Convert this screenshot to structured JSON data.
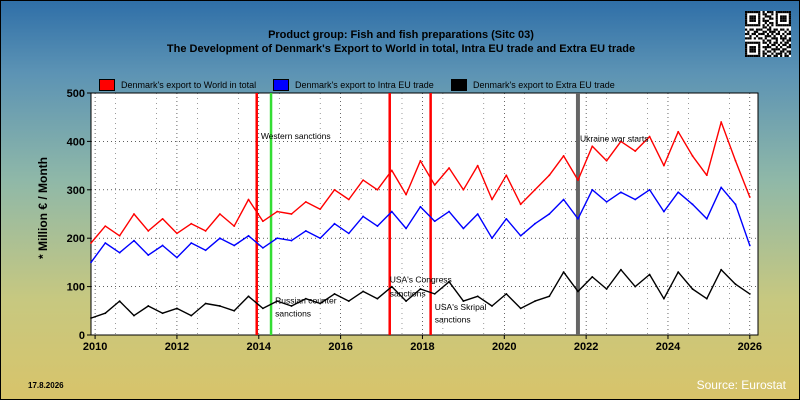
{
  "chart_data": {
    "type": "line",
    "title": "Product group: Fish and fish preparations (Sitc 03)",
    "subtitle": "The Development of Denmark's Export to World in total, Intra EU trade and Extra EU trade",
    "ylabel": "* Million € / Month",
    "xlim": [
      2009.9,
      2026.2
    ],
    "ylim": [
      0,
      500
    ],
    "xticks": [
      2010,
      2012,
      2014,
      2016,
      2018,
      2020,
      2022,
      2024,
      2026
    ],
    "yticks": [
      0,
      100,
      200,
      300,
      400,
      500
    ],
    "grid": true,
    "legend_position": "top",
    "series": [
      {
        "name": "Denmark's export to World in total",
        "color": "#ff0000",
        "x": [
          2009.9,
          2010.25,
          2010.6,
          2010.95,
          2011.3,
          2011.65,
          2012.0,
          2012.35,
          2012.7,
          2013.05,
          2013.4,
          2013.75,
          2014.1,
          2014.45,
          2014.8,
          2015.15,
          2015.5,
          2015.85,
          2016.2,
          2016.55,
          2016.9,
          2017.25,
          2017.6,
          2017.95,
          2018.3,
          2018.65,
          2019.0,
          2019.35,
          2019.7,
          2020.05,
          2020.4,
          2020.75,
          2021.1,
          2021.45,
          2021.8,
          2022.15,
          2022.5,
          2022.85,
          2023.2,
          2023.55,
          2023.9,
          2024.25,
          2024.6,
          2024.95,
          2025.3,
          2025.65,
          2026.0
        ],
        "values": [
          190,
          225,
          205,
          250,
          215,
          240,
          210,
          230,
          215,
          250,
          225,
          280,
          235,
          255,
          250,
          275,
          260,
          300,
          280,
          320,
          300,
          340,
          290,
          360,
          310,
          345,
          300,
          350,
          280,
          330,
          270,
          300,
          330,
          370,
          320,
          390,
          360,
          400,
          380,
          410,
          350,
          420,
          370,
          330,
          440,
          360,
          285
        ]
      },
      {
        "name": "Denmark's export to Intra EU trade",
        "color": "#0000ff",
        "x": [
          2009.9,
          2010.25,
          2010.6,
          2010.95,
          2011.3,
          2011.65,
          2012.0,
          2012.35,
          2012.7,
          2013.05,
          2013.4,
          2013.75,
          2014.1,
          2014.45,
          2014.8,
          2015.15,
          2015.5,
          2015.85,
          2016.2,
          2016.55,
          2016.9,
          2017.25,
          2017.6,
          2017.95,
          2018.3,
          2018.65,
          2019.0,
          2019.35,
          2019.7,
          2020.05,
          2020.4,
          2020.75,
          2021.1,
          2021.45,
          2021.8,
          2022.15,
          2022.5,
          2022.85,
          2023.2,
          2023.55,
          2023.9,
          2024.25,
          2024.6,
          2024.95,
          2025.3,
          2025.65,
          2026.0
        ],
        "values": [
          150,
          190,
          170,
          195,
          165,
          185,
          160,
          190,
          175,
          200,
          185,
          205,
          180,
          200,
          195,
          215,
          200,
          230,
          210,
          245,
          225,
          255,
          220,
          265,
          235,
          255,
          220,
          250,
          200,
          240,
          205,
          230,
          250,
          280,
          240,
          300,
          275,
          295,
          280,
          300,
          255,
          295,
          270,
          240,
          305,
          270,
          185
        ]
      },
      {
        "name": "Denmark's export to Extra EU trade",
        "color": "#000000",
        "x": [
          2009.9,
          2010.25,
          2010.6,
          2010.95,
          2011.3,
          2011.65,
          2012.0,
          2012.35,
          2012.7,
          2013.05,
          2013.4,
          2013.75,
          2014.1,
          2014.45,
          2014.8,
          2015.15,
          2015.5,
          2015.85,
          2016.2,
          2016.55,
          2016.9,
          2017.25,
          2017.6,
          2017.95,
          2018.3,
          2018.65,
          2019.0,
          2019.35,
          2019.7,
          2020.05,
          2020.4,
          2020.75,
          2021.1,
          2021.45,
          2021.8,
          2022.15,
          2022.5,
          2022.85,
          2023.2,
          2023.55,
          2023.9,
          2024.25,
          2024.6,
          2024.95,
          2025.3,
          2025.65,
          2026.0
        ],
        "values": [
          35,
          45,
          70,
          40,
          60,
          45,
          55,
          40,
          65,
          60,
          50,
          80,
          55,
          70,
          60,
          75,
          65,
          85,
          70,
          90,
          75,
          100,
          70,
          95,
          85,
          110,
          70,
          80,
          60,
          85,
          55,
          70,
          80,
          130,
          90,
          120,
          95,
          135,
          100,
          125,
          75,
          130,
          95,
          75,
          135,
          105,
          85
        ]
      }
    ],
    "vlines": [
      {
        "x": 2013.95,
        "color": "#ff0000",
        "label": ""
      },
      {
        "x": 2014.3,
        "color": "#33dd33",
        "label": "Western sanctions"
      },
      {
        "x": 2017.2,
        "color": "#ff0000",
        "label": "USA's Congress"
      },
      {
        "x": 2018.2,
        "color": "#ff0000",
        "label": "USA's Skripal"
      },
      {
        "x": 2021.8,
        "color": "#666666",
        "label": "Ukraine war starts"
      }
    ],
    "annotations": [
      {
        "text": "Western sanctions",
        "x": 2014.05,
        "y": 405
      },
      {
        "text": "Ukraine war starts",
        "x": 2021.85,
        "y": 400
      },
      {
        "text": "Russian counter",
        "x": 2014.4,
        "y": 65
      },
      {
        "text": "sanctions",
        "x": 2014.4,
        "y": 38
      },
      {
        "text": "USA's Congress",
        "x": 2017.2,
        "y": 108
      },
      {
        "text": "sanctions",
        "x": 2017.2,
        "y": 80
      },
      {
        "text": "USA's Skripal",
        "x": 2018.3,
        "y": 52
      },
      {
        "text": "sanctions",
        "x": 2018.3,
        "y": 26
      }
    ]
  },
  "footer": {
    "date": "17.8.2026",
    "source": "Source: Eurostat"
  }
}
